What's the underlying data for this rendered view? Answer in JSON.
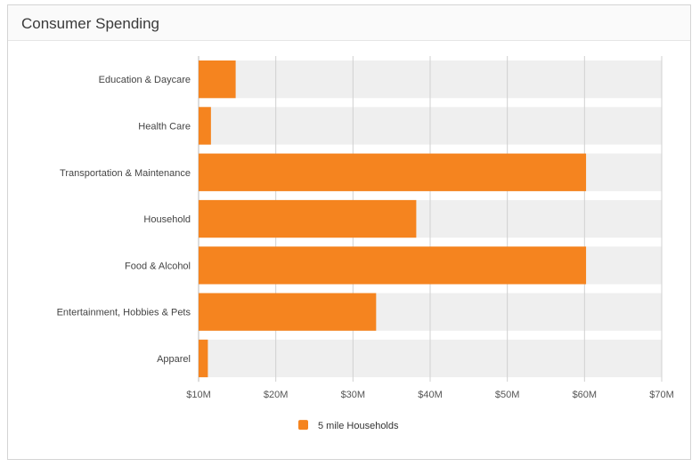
{
  "widget": {
    "title": "Consumer Spending"
  },
  "chart_data": {
    "type": "bar",
    "orientation": "horizontal",
    "title": "Consumer Spending",
    "categories": [
      "Education & Daycare",
      "Health Care",
      "Transportation & Maintenance",
      "Household",
      "Food & Alcohol",
      "Entertainment, Hobbies & Pets",
      "Apparel"
    ],
    "series": [
      {
        "name": "5 mile Households",
        "values": [
          14.8,
          11.6,
          60.2,
          38.2,
          60.2,
          33.0,
          11.2
        ],
        "color": "#f5841f"
      }
    ],
    "xlim": [
      10,
      70
    ],
    "x_ticks": [
      "$10M",
      "$20M",
      "$30M",
      "$40M",
      "$50M",
      "$60M",
      "$70M"
    ],
    "grid": true,
    "legend_position": "bottom-center"
  }
}
